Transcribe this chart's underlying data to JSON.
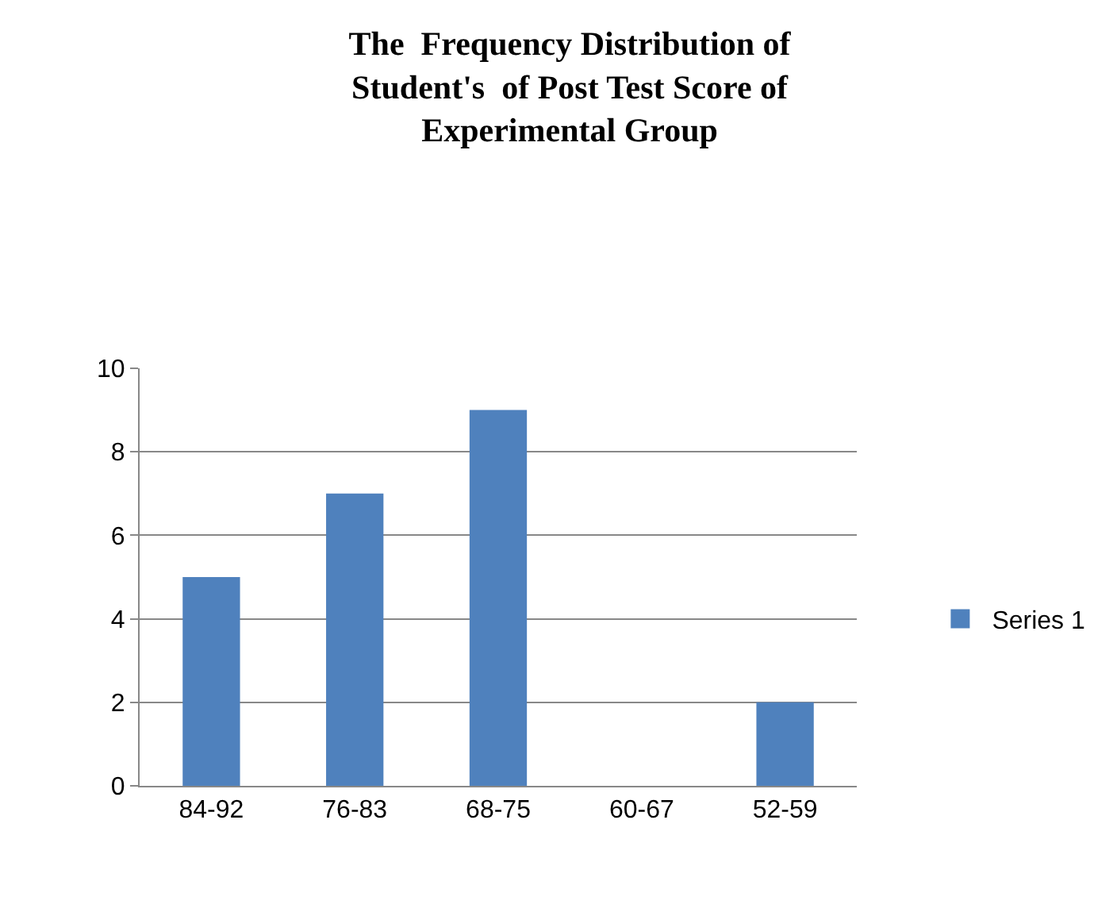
{
  "chart_data": {
    "type": "bar",
    "title": "The  Frequency Distribution of\nStudent's  of Post Test Score of\nExperimental Group",
    "categories": [
      "84-92",
      "76-83",
      "68-75",
      "60-67",
      "52-59"
    ],
    "series": [
      {
        "name": "Series 1",
        "color": "#4f81bd",
        "values": [
          5,
          7,
          9,
          0,
          2
        ]
      }
    ],
    "ylim": [
      0,
      10
    ],
    "yticks": [
      0,
      2,
      4,
      6,
      8,
      10
    ],
    "grid": "y",
    "legend": "right"
  }
}
